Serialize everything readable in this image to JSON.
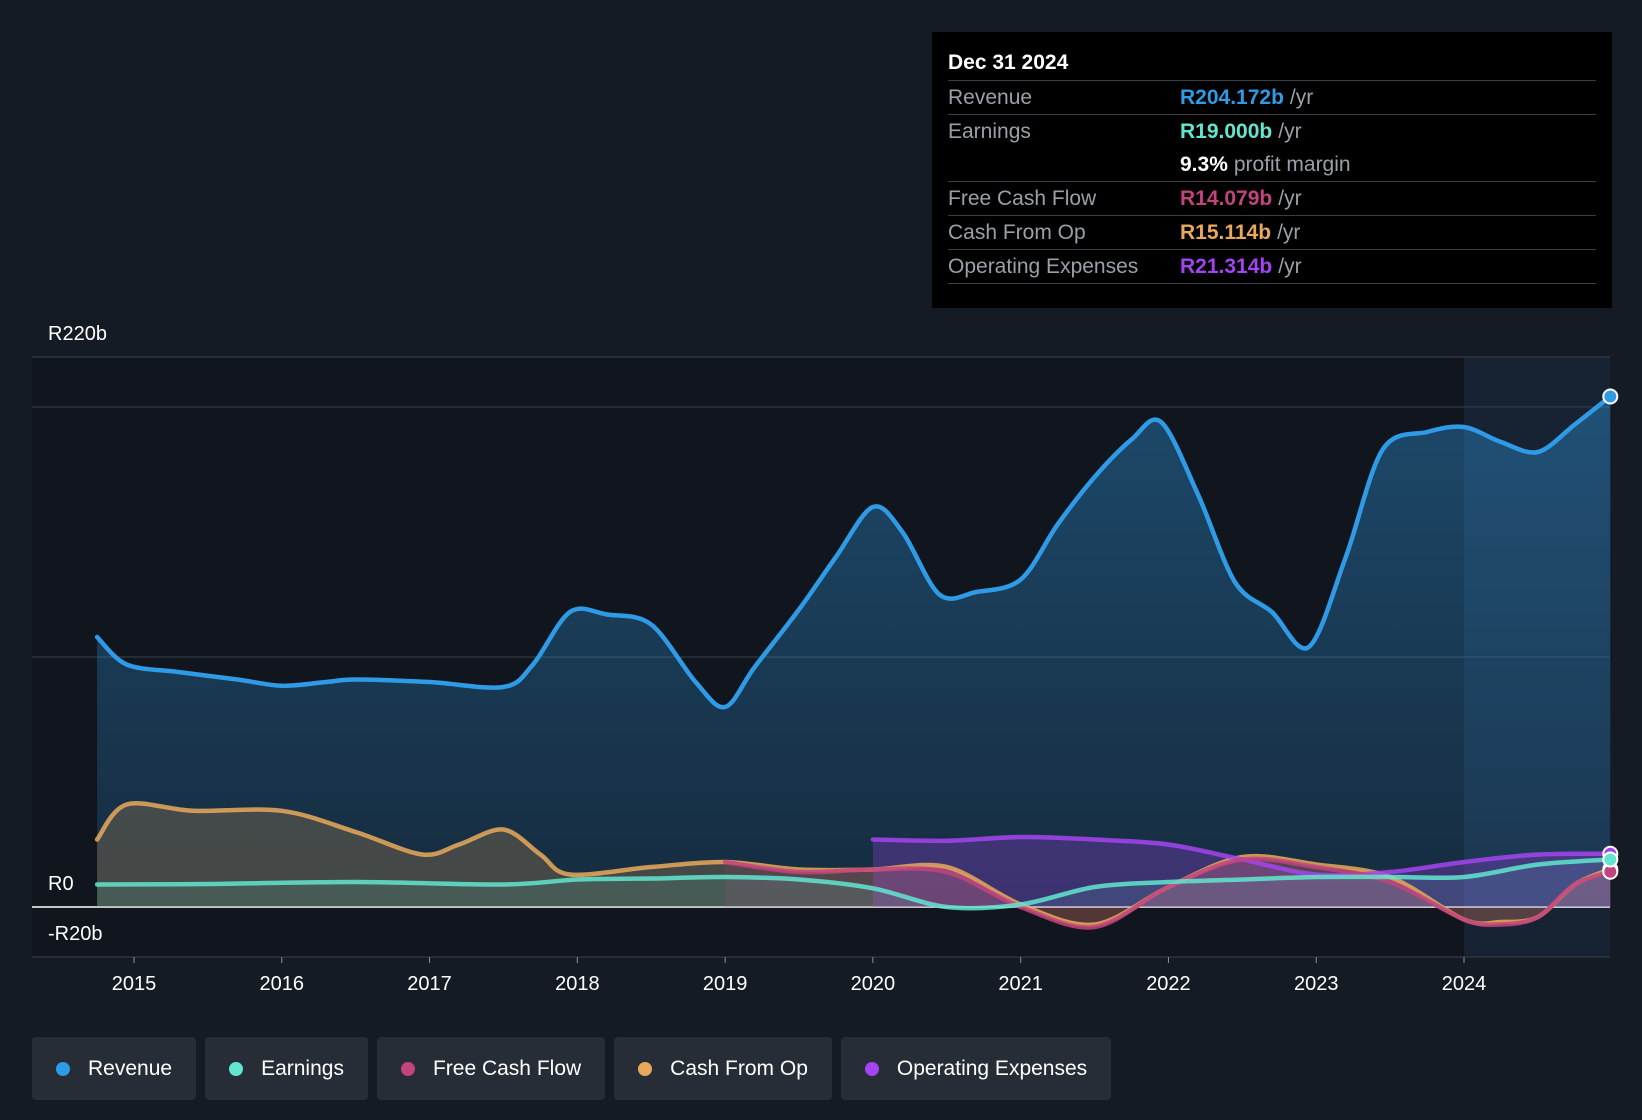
{
  "colors": {
    "revenue": "#2f9be6",
    "earnings": "#62e6cf",
    "fcf": "#c2437e",
    "cfo": "#e9a95b",
    "opex": "#a444f0"
  },
  "tooltip": {
    "date": "Dec 31 2024",
    "rows": [
      {
        "label": "Revenue",
        "value": "R204.172b",
        "unit": "/yr"
      },
      {
        "label": "Earnings",
        "value": "R19.000b",
        "unit": "/yr"
      },
      {
        "label": "",
        "value": "9.3%",
        "unit": "profit margin"
      },
      {
        "label": "Free Cash Flow",
        "value": "R14.079b",
        "unit": "/yr"
      },
      {
        "label": "Cash From Op",
        "value": "R15.114b",
        "unit": "/yr"
      },
      {
        "label": "Operating Expenses",
        "value": "R21.314b",
        "unit": "/yr"
      }
    ]
  },
  "legend": [
    "Revenue",
    "Earnings",
    "Free Cash Flow",
    "Cash From Op",
    "Operating Expenses"
  ],
  "chart_data": {
    "type": "area",
    "title": "",
    "ylim": [
      -20,
      220
    ],
    "y_tick_labels": [
      "R220b",
      "R0",
      "-R20b"
    ],
    "x_tick_labels": [
      "2015",
      "2016",
      "2017",
      "2018",
      "2019",
      "2020",
      "2021",
      "2022",
      "2023",
      "2024"
    ],
    "x_ticks": [
      2015,
      2016,
      2017,
      2018,
      2019,
      2020,
      2021,
      2022,
      2023,
      2024
    ],
    "xlim": [
      2014.3,
      2025.0
    ],
    "forecast_start": 2024.0,
    "series": [
      {
        "name": "Revenue",
        "key": "revenue",
        "points": [
          [
            2014.75,
            108
          ],
          [
            2014.95,
            97
          ],
          [
            2015.3,
            94
          ],
          [
            2015.7,
            91
          ],
          [
            2016.0,
            88.5
          ],
          [
            2016.3,
            90
          ],
          [
            2016.5,
            91
          ],
          [
            2017.0,
            90
          ],
          [
            2017.5,
            88
          ],
          [
            2017.7,
            97
          ],
          [
            2017.95,
            118
          ],
          [
            2018.2,
            117
          ],
          [
            2018.5,
            113
          ],
          [
            2018.8,
            90
          ],
          [
            2019.0,
            80
          ],
          [
            2019.2,
            96
          ],
          [
            2019.5,
            119
          ],
          [
            2019.75,
            140
          ],
          [
            2020.0,
            160
          ],
          [
            2020.2,
            150
          ],
          [
            2020.45,
            125
          ],
          [
            2020.7,
            126
          ],
          [
            2021.0,
            131
          ],
          [
            2021.25,
            153
          ],
          [
            2021.5,
            172
          ],
          [
            2021.75,
            187
          ],
          [
            2021.95,
            194
          ],
          [
            2022.2,
            165
          ],
          [
            2022.45,
            130
          ],
          [
            2022.7,
            118
          ],
          [
            2022.95,
            104
          ],
          [
            2023.2,
            140
          ],
          [
            2023.45,
            183
          ],
          [
            2023.75,
            190
          ],
          [
            2024.0,
            192
          ],
          [
            2024.25,
            186
          ],
          [
            2024.5,
            182
          ],
          [
            2024.75,
            193
          ],
          [
            2024.99,
            204.2
          ]
        ]
      },
      {
        "name": "Earnings",
        "key": "earnings",
        "points": [
          [
            2014.75,
            9
          ],
          [
            2015.5,
            9.2
          ],
          [
            2016.5,
            10
          ],
          [
            2017.5,
            9
          ],
          [
            2018.0,
            11
          ],
          [
            2018.5,
            11.4
          ],
          [
            2019.0,
            12
          ],
          [
            2019.5,
            11
          ],
          [
            2020.0,
            7.5
          ],
          [
            2020.5,
            0
          ],
          [
            2021.0,
            1
          ],
          [
            2021.5,
            8
          ],
          [
            2022.0,
            10
          ],
          [
            2022.5,
            11
          ],
          [
            2023.0,
            12
          ],
          [
            2023.5,
            12
          ],
          [
            2024.0,
            12
          ],
          [
            2024.5,
            17
          ],
          [
            2024.99,
            19.0
          ]
        ]
      },
      {
        "name": "Free Cash Flow",
        "key": "fcf",
        "points": [
          [
            2019.0,
            18
          ],
          [
            2019.5,
            14
          ],
          [
            2020.0,
            15
          ],
          [
            2020.5,
            14
          ],
          [
            2021.0,
            0
          ],
          [
            2021.5,
            -8
          ],
          [
            2022.0,
            8
          ],
          [
            2022.5,
            19
          ],
          [
            2023.0,
            16
          ],
          [
            2023.5,
            10
          ],
          [
            2024.0,
            -5
          ],
          [
            2024.25,
            -7
          ],
          [
            2024.5,
            -4
          ],
          [
            2024.75,
            9
          ],
          [
            2024.99,
            14.1
          ]
        ]
      },
      {
        "name": "Cash From Op",
        "key": "cfo",
        "points": [
          [
            2014.75,
            27
          ],
          [
            2014.95,
            41
          ],
          [
            2015.4,
            38.5
          ],
          [
            2016.0,
            38.5
          ],
          [
            2016.5,
            30
          ],
          [
            2016.95,
            21
          ],
          [
            2017.2,
            25
          ],
          [
            2017.5,
            31
          ],
          [
            2017.75,
            21
          ],
          [
            2017.95,
            13
          ],
          [
            2018.5,
            16
          ],
          [
            2019.0,
            18
          ],
          [
            2019.5,
            15
          ],
          [
            2020.0,
            15
          ],
          [
            2020.5,
            16
          ],
          [
            2021.0,
            1
          ],
          [
            2021.5,
            -7
          ],
          [
            2022.0,
            8
          ],
          [
            2022.5,
            20
          ],
          [
            2023.0,
            17
          ],
          [
            2023.5,
            12
          ],
          [
            2024.0,
            -5
          ],
          [
            2024.25,
            -6
          ],
          [
            2024.5,
            -4
          ],
          [
            2024.75,
            9
          ],
          [
            2024.99,
            15.1
          ]
        ]
      },
      {
        "name": "Operating Expenses",
        "key": "opex",
        "points": [
          [
            2020.0,
            27
          ],
          [
            2020.5,
            26.5
          ],
          [
            2021.0,
            28
          ],
          [
            2021.5,
            27
          ],
          [
            2022.0,
            25
          ],
          [
            2022.5,
            19
          ],
          [
            2023.0,
            13
          ],
          [
            2023.5,
            14
          ],
          [
            2024.0,
            18
          ],
          [
            2024.5,
            21
          ],
          [
            2024.99,
            21.3
          ]
        ]
      }
    ]
  }
}
